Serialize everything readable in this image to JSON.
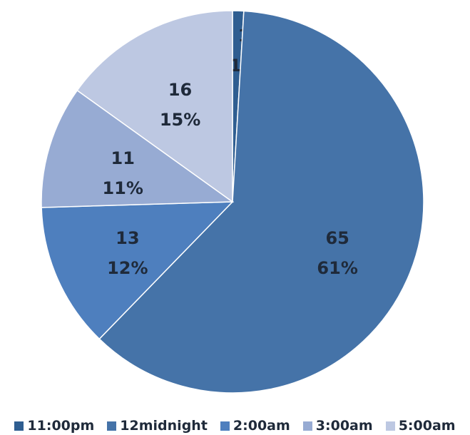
{
  "chart_data": {
    "type": "pie",
    "categories": [
      "11:00pm",
      "12midnight",
      "2:00am",
      "3:00am",
      "5:00am"
    ],
    "values": [
      1,
      65,
      13,
      11,
      16
    ],
    "percent_labels": [
      "1%",
      "61%",
      "12%",
      "11%",
      "15%"
    ],
    "value_labels": [
      "1",
      "65",
      "13",
      "11",
      "16"
    ],
    "colors": [
      "#2f5e91",
      "#4573a8",
      "#4e7fbe",
      "#97abd3",
      "#bdc8e2"
    ],
    "start_angle_deg": 0,
    "direction": "clockwise",
    "legend_position": "bottom"
  }
}
